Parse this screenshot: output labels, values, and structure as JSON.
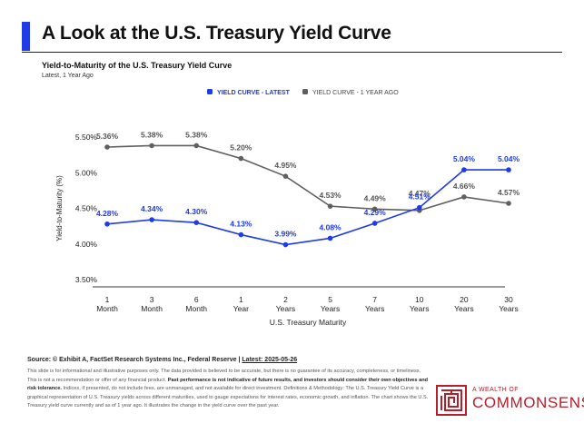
{
  "header": {
    "title": "A Look at the U.S. Treasury Yield Curve",
    "subtitle": "Yield-to-Maturity of the U.S. Treasury Yield Curve",
    "subsubtitle": "Latest, 1 Year Ago"
  },
  "colors": {
    "accent": "#1f3ae6",
    "latest": "#1f3ae6",
    "year_ago": "#5f5f5f",
    "brand": "#b51f2a"
  },
  "chart_data": {
    "type": "line",
    "categories": [
      "1\nMonth",
      "3\nMonth",
      "6\nMonth",
      "1\nYear",
      "2\nYears",
      "5\nYears",
      "7\nYears",
      "10\nYears",
      "20\nYears",
      "30\nYears"
    ],
    "series": [
      {
        "name": "YIELD CURVE - LATEST",
        "values": [
          4.28,
          4.34,
          4.3,
          4.13,
          3.99,
          4.08,
          4.29,
          4.51,
          5.04,
          5.04
        ],
        "labels": [
          "4.28%",
          "4.34%",
          "4.30%",
          "4.13%",
          "3.99%",
          "4.08%",
          "4.29%",
          "4.51%",
          "5.04%",
          "5.04%"
        ]
      },
      {
        "name": "YIELD CURVE - 1 YEAR AGO",
        "values": [
          5.36,
          5.38,
          5.38,
          5.2,
          4.95,
          4.53,
          4.49,
          4.47,
          4.66,
          4.57
        ],
        "labels": [
          "5.36%",
          "5.38%",
          "5.38%",
          "5.20%",
          "4.95%",
          "4.53%",
          "4.49%",
          "4.47%",
          "4.66%",
          "4.57%"
        ]
      }
    ],
    "ylim": [
      3.5,
      5.5
    ],
    "yticks": [
      3.5,
      4.0,
      4.5,
      5.0,
      5.5
    ],
    "ytick_labels": [
      "3.50%",
      "4.00%",
      "4.50%",
      "5.00%",
      "5.50%"
    ],
    "ylabel": "Yield-to-Maturity (%)",
    "xlabel": "U.S. Treasury Maturity",
    "legend_position": "top-center",
    "grid": false
  },
  "footer": {
    "source_label": "Source: © Exhibit A, FactSet Research Systems Inc., Federal Reserve | ",
    "date_label": "Latest: 2025-05-26",
    "disclaimer_1": "This slide is for informational and illustrative purposes only. The data provided is believed to be accurate, but there is no guarantee of its accuracy, completeness, or timeliness. This is not a recommendation or offer of any financial product. ",
    "disclaimer_bold": "Past performance is not indicative of future results, and investors should consider their own objectives and risk tolerance.",
    "disclaimer_2": " Indices, if presented, do not include fees, are unmanaged, and not available for direct investment. Definitions & Methodology: The U.S. Treasury Yield Curve is a graphical representation of U.S. Treasury yields across different maturities, used to gauge expectations for interest rates, economic growth, and inflation. The chart shows the U.S. Treasury yield curve currently and as of 1 year ago. It illustrates the change in the yield curve over the past year."
  },
  "logo": {
    "top": "A WEALTH OF",
    "bottom": "COMMONSENSE"
  }
}
